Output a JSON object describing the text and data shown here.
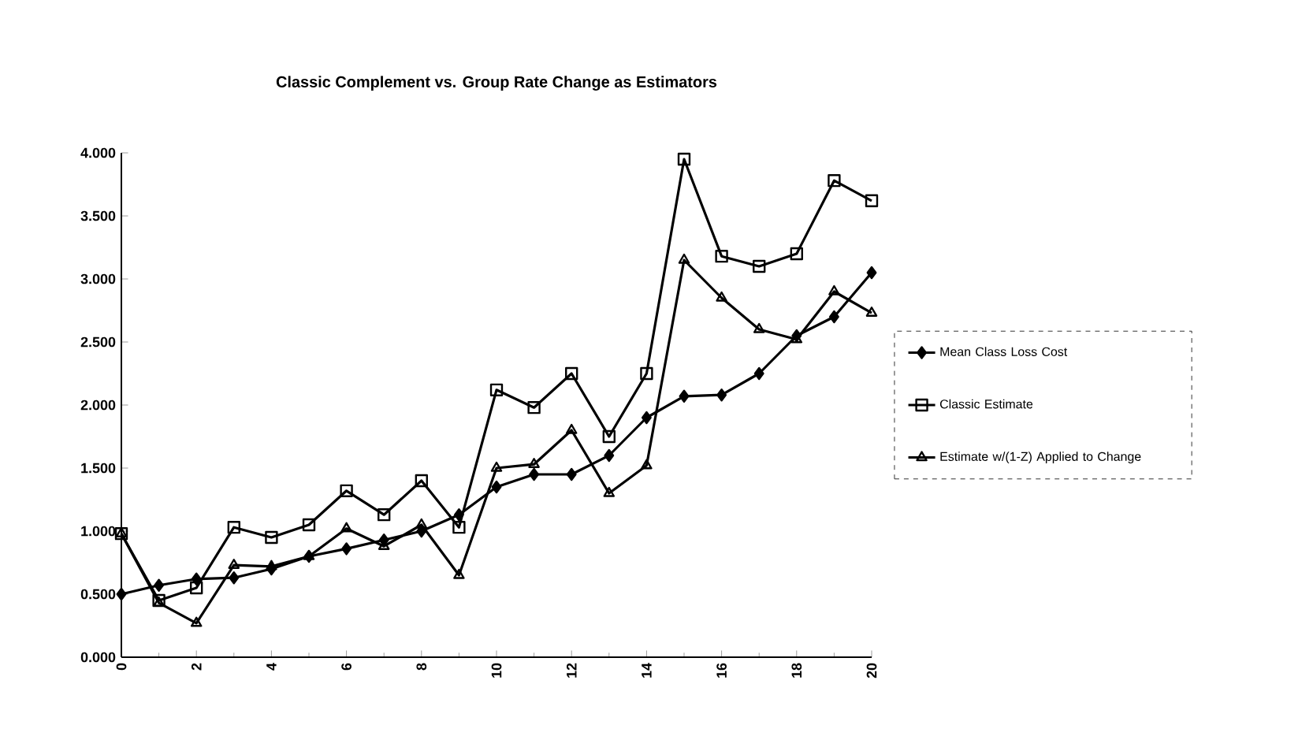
{
  "chart_data": {
    "type": "line",
    "title": "Classic Complement vs. Group Rate Change as Estimators",
    "x": [
      0,
      1,
      2,
      3,
      4,
      5,
      6,
      7,
      8,
      9,
      10,
      11,
      12,
      13,
      14,
      15,
      16,
      17,
      18,
      19,
      20
    ],
    "series": [
      {
        "name": "Mean Class Loss Cost",
        "color": "#000000",
        "marker": "diamond",
        "values": [
          0.5,
          0.57,
          0.62,
          0.63,
          0.7,
          0.8,
          0.86,
          0.93,
          1.0,
          1.13,
          1.35,
          1.45,
          1.45,
          1.6,
          1.9,
          2.07,
          2.08,
          2.25,
          2.55,
          2.7,
          3.05
        ]
      },
      {
        "name": "Classic Estimate",
        "color": "#000000",
        "marker": "square",
        "values": [
          0.98,
          0.45,
          0.55,
          1.03,
          0.95,
          1.05,
          1.32,
          1.13,
          1.4,
          1.03,
          2.12,
          1.98,
          2.25,
          1.75,
          2.25,
          3.95,
          3.18,
          3.1,
          3.2,
          3.78,
          3.62
        ]
      },
      {
        "name": "Estimate w/(1-Z) Applied to Change",
        "color": "#000000",
        "marker": "triangle",
        "values": [
          0.98,
          0.43,
          0.27,
          0.73,
          0.72,
          0.8,
          1.02,
          0.88,
          1.05,
          0.65,
          1.5,
          1.53,
          1.8,
          1.3,
          1.52,
          3.15,
          2.85,
          2.6,
          2.52,
          2.9,
          2.73
        ]
      }
    ],
    "xlim": [
      0,
      20
    ],
    "xticks": [
      0,
      2,
      4,
      6,
      8,
      10,
      12,
      14,
      16,
      18,
      20
    ],
    "ylim": [
      0,
      4
    ],
    "yticks": [
      {
        "value": 0,
        "label": "0.000"
      },
      {
        "value": 0.5,
        "label": "0.500"
      },
      {
        "value": 1,
        "label": "1.000"
      },
      {
        "value": 1.5,
        "label": "1.500"
      },
      {
        "value": 2,
        "label": "2.000"
      },
      {
        "value": 2.5,
        "label": "2.500"
      },
      {
        "value": 3,
        "label": "3.000"
      },
      {
        "value": 3.5,
        "label": "3.500"
      },
      {
        "value": 4,
        "label": "4.000"
      }
    ],
    "grid": false,
    "legend": "right",
    "line_style": "solid"
  }
}
